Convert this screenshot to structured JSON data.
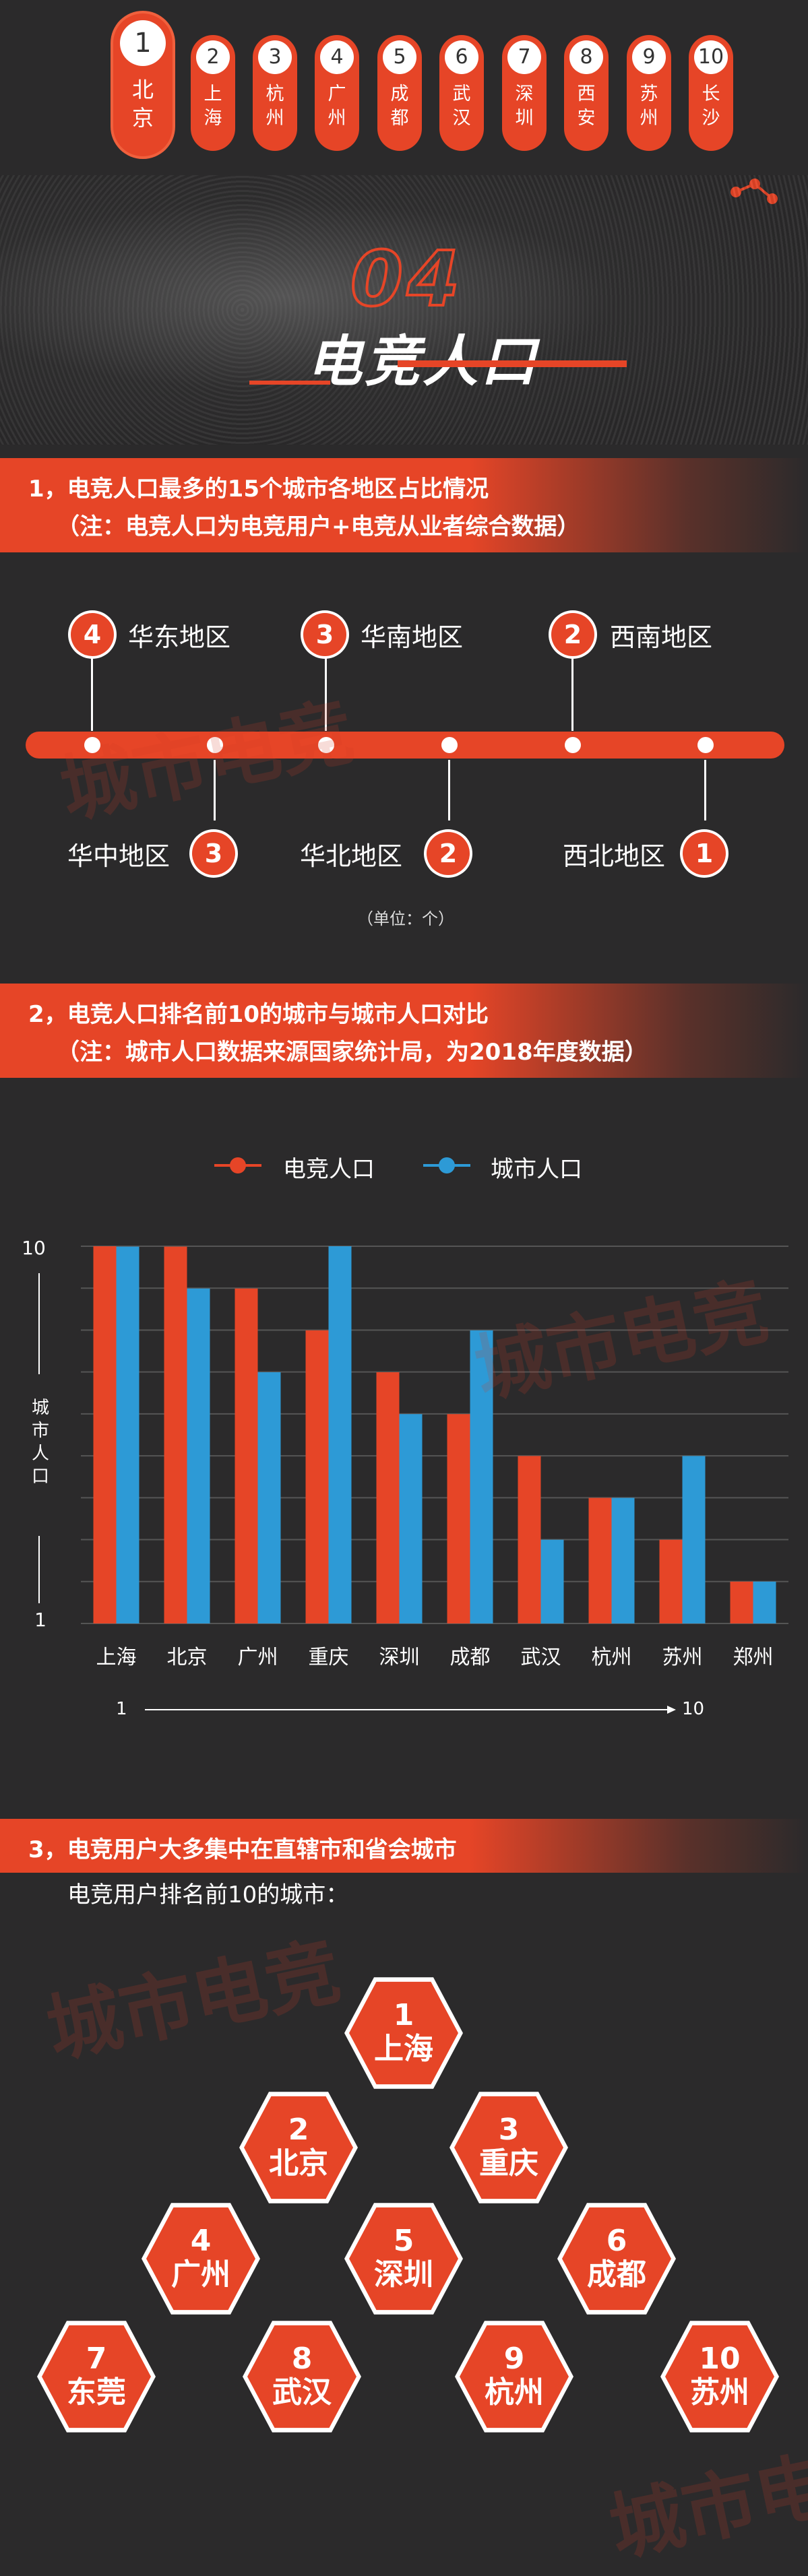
{
  "tabs": [
    {
      "num": "1",
      "name": "北京",
      "active": true
    },
    {
      "num": "2",
      "name": "上海"
    },
    {
      "num": "3",
      "name": "杭州"
    },
    {
      "num": "4",
      "name": "广州"
    },
    {
      "num": "5",
      "name": "成都"
    },
    {
      "num": "6",
      "name": "武汉"
    },
    {
      "num": "7",
      "name": "深圳"
    },
    {
      "num": "8",
      "name": "西安"
    },
    {
      "num": "9",
      "name": "苏州"
    },
    {
      "num": "10",
      "name": "长沙"
    }
  ],
  "header": {
    "number": "04",
    "title": "电竞人口"
  },
  "section1": {
    "title": "1，电竞人口最多的15个城市各地区占比情况",
    "note": "（注：电竞人口为电竞用户+电竞从业者综合数据）",
    "unit": "（单位：个）",
    "regions_top": [
      {
        "name": "华东地区",
        "count": "4"
      },
      {
        "name": "华南地区",
        "count": "3"
      },
      {
        "name": "西南地区",
        "count": "2"
      }
    ],
    "regions_bottom": [
      {
        "name": "华中地区",
        "count": "3"
      },
      {
        "name": "华北地区",
        "count": "2"
      },
      {
        "name": "西北地区",
        "count": "1"
      }
    ]
  },
  "section2": {
    "title": "2，电竞人口排名前10的城市与城市人口对比",
    "note": "（注：城市人口数据来源国家统计局，为2018年度数据）",
    "rank_start": "1",
    "rank_end": "10"
  },
  "chart_data": {
    "type": "bar",
    "categories": [
      "上海",
      "北京",
      "广州",
      "重庆",
      "深圳",
      "成都",
      "武汉",
      "杭州",
      "苏州",
      "郑州"
    ],
    "series": [
      {
        "name": "电竞人口",
        "color": "#e64527",
        "values": [
          10,
          9,
          8,
          7,
          6,
          5,
          4,
          3,
          2,
          1
        ]
      },
      {
        "name": "城市人口",
        "color": "#2d9ad6",
        "values": [
          9,
          8,
          6,
          10,
          5,
          7,
          2,
          3,
          4,
          1
        ]
      }
    ],
    "ylabel": "城市人口",
    "y_top_label": "10",
    "y_bottom_label": "1",
    "ylim": [
      1,
      10
    ],
    "grid": true,
    "legend_position": "top-center"
  },
  "section3": {
    "title": "3，电竞用户大多集中在直辖市和省会城市",
    "subtitle": "电竞用户排名前10的城市：",
    "cities": [
      {
        "rank": "1",
        "name": "上海"
      },
      {
        "rank": "2",
        "name": "北京"
      },
      {
        "rank": "3",
        "name": "重庆"
      },
      {
        "rank": "4",
        "name": "广州"
      },
      {
        "rank": "5",
        "name": "深圳"
      },
      {
        "rank": "6",
        "name": "成都"
      },
      {
        "rank": "7",
        "name": "东莞"
      },
      {
        "rank": "8",
        "name": "武汉"
      },
      {
        "rank": "9",
        "name": "杭州"
      },
      {
        "rank": "10",
        "name": "苏州"
      }
    ]
  },
  "watermark": "城市电竞"
}
